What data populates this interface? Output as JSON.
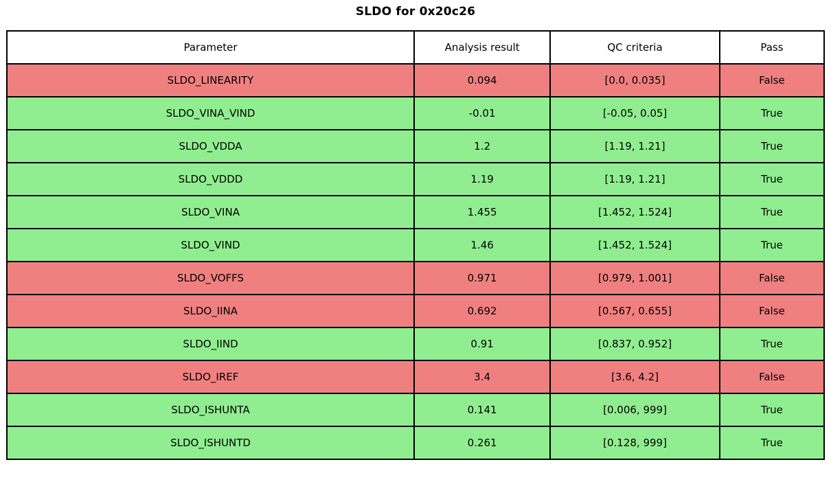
{
  "title": "SLDO for 0x20c26",
  "colors": {
    "pass_true_bg": "#90ee90",
    "pass_false_bg": "#f08080",
    "header_bg": "#ffffff",
    "border": "#000000",
    "text": "#000000"
  },
  "chart_data": {
    "type": "table",
    "title": "SLDO for 0x20c26",
    "columns": [
      "Parameter",
      "Analysis result",
      "QC criteria",
      "Pass"
    ],
    "rows": [
      {
        "parameter": "SLDO_LINEARITY",
        "analysis_result": "0.094",
        "qc_criteria": "[0.0, 0.035]",
        "pass": "False"
      },
      {
        "parameter": "SLDO_VINA_VIND",
        "analysis_result": "-0.01",
        "qc_criteria": "[-0.05, 0.05]",
        "pass": "True"
      },
      {
        "parameter": "SLDO_VDDA",
        "analysis_result": "1.2",
        "qc_criteria": "[1.19, 1.21]",
        "pass": "True"
      },
      {
        "parameter": "SLDO_VDDD",
        "analysis_result": "1.19",
        "qc_criteria": "[1.19, 1.21]",
        "pass": "True"
      },
      {
        "parameter": "SLDO_VINA",
        "analysis_result": "1.455",
        "qc_criteria": "[1.452, 1.524]",
        "pass": "True"
      },
      {
        "parameter": "SLDO_VIND",
        "analysis_result": "1.46",
        "qc_criteria": "[1.452, 1.524]",
        "pass": "True"
      },
      {
        "parameter": "SLDO_VOFFS",
        "analysis_result": "0.971",
        "qc_criteria": "[0.979, 1.001]",
        "pass": "False"
      },
      {
        "parameter": "SLDO_IINA",
        "analysis_result": "0.692",
        "qc_criteria": "[0.567, 0.655]",
        "pass": "False"
      },
      {
        "parameter": "SLDO_IIND",
        "analysis_result": "0.91",
        "qc_criteria": "[0.837, 0.952]",
        "pass": "True"
      },
      {
        "parameter": "SLDO_IREF",
        "analysis_result": "3.4",
        "qc_criteria": "[3.6, 4.2]",
        "pass": "False"
      },
      {
        "parameter": "SLDO_ISHUNTA",
        "analysis_result": "0.141",
        "qc_criteria": "[0.006, 999]",
        "pass": "True"
      },
      {
        "parameter": "SLDO_ISHUNTD",
        "analysis_result": "0.261",
        "qc_criteria": "[0.128, 999]",
        "pass": "True"
      }
    ]
  }
}
